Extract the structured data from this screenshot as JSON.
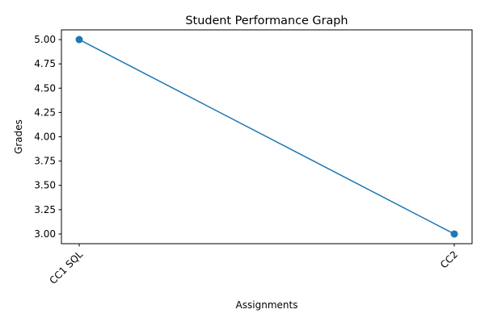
{
  "chart_data": {
    "type": "line",
    "title": "Student Performance Graph",
    "xlabel": "Assignments",
    "ylabel": "Grades",
    "categories": [
      "CC1 SQL",
      "CC2"
    ],
    "series": [
      {
        "values": [
          5.0,
          3.0
        ],
        "color": "#1f77b4",
        "marker": "circle"
      }
    ],
    "ylim": [
      2.9,
      5.1
    ],
    "yticks": [
      "3.00",
      "3.25",
      "3.50",
      "3.75",
      "4.00",
      "4.25",
      "4.50",
      "4.75",
      "5.00"
    ],
    "xtick_rotation_deg": 45,
    "grid": false,
    "legend": "none"
  }
}
